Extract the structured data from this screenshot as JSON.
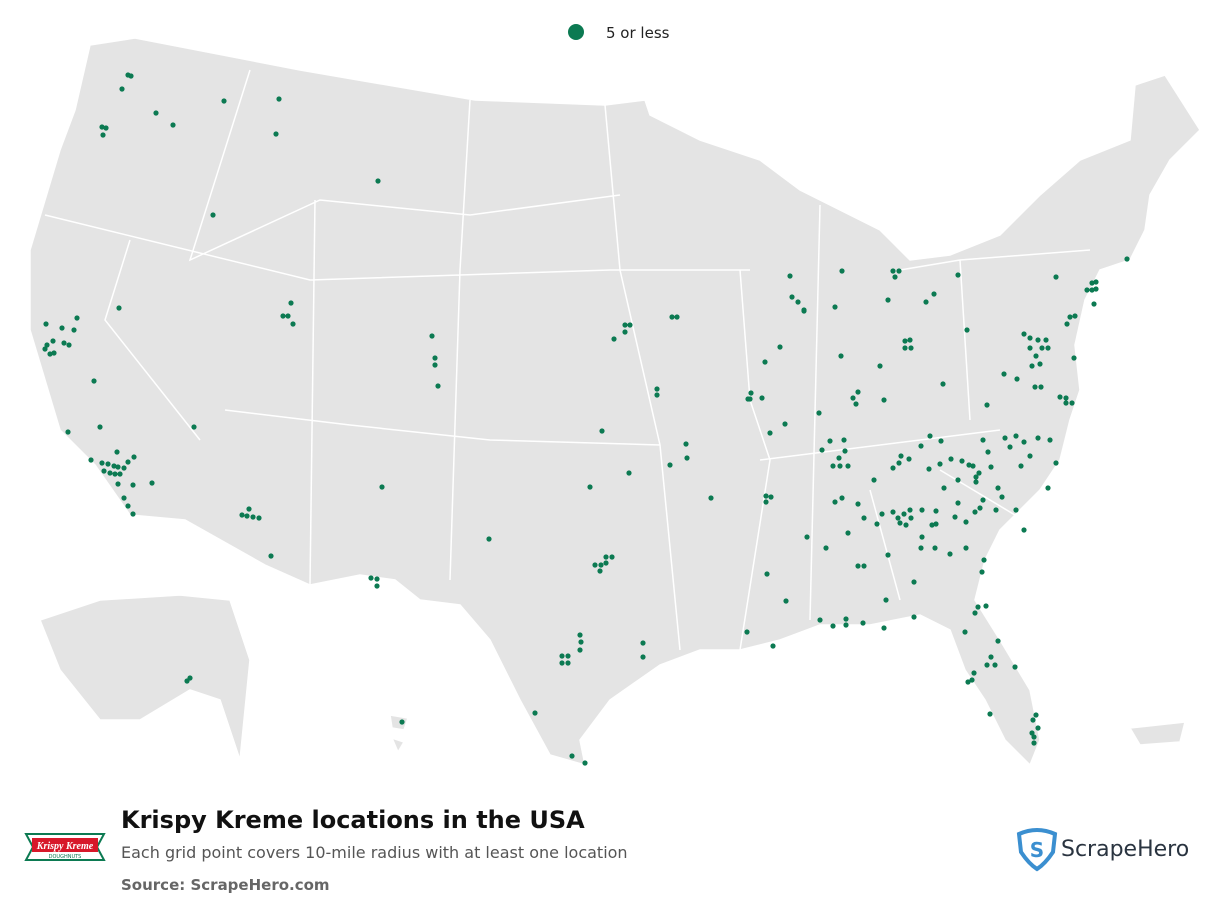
{
  "legend": {
    "label": "5 or less",
    "color": "#0c7a52"
  },
  "footer": {
    "title": "Krispy Kreme locations in the USA",
    "subtitle": "Each grid point covers 10-mile radius with at least one location",
    "source": "Source: ScrapeHero.com",
    "logo": {
      "text": "Krispy Kreme",
      "subtext": "DOUGHNUTS"
    },
    "brand": "ScrapeHero"
  }
}
